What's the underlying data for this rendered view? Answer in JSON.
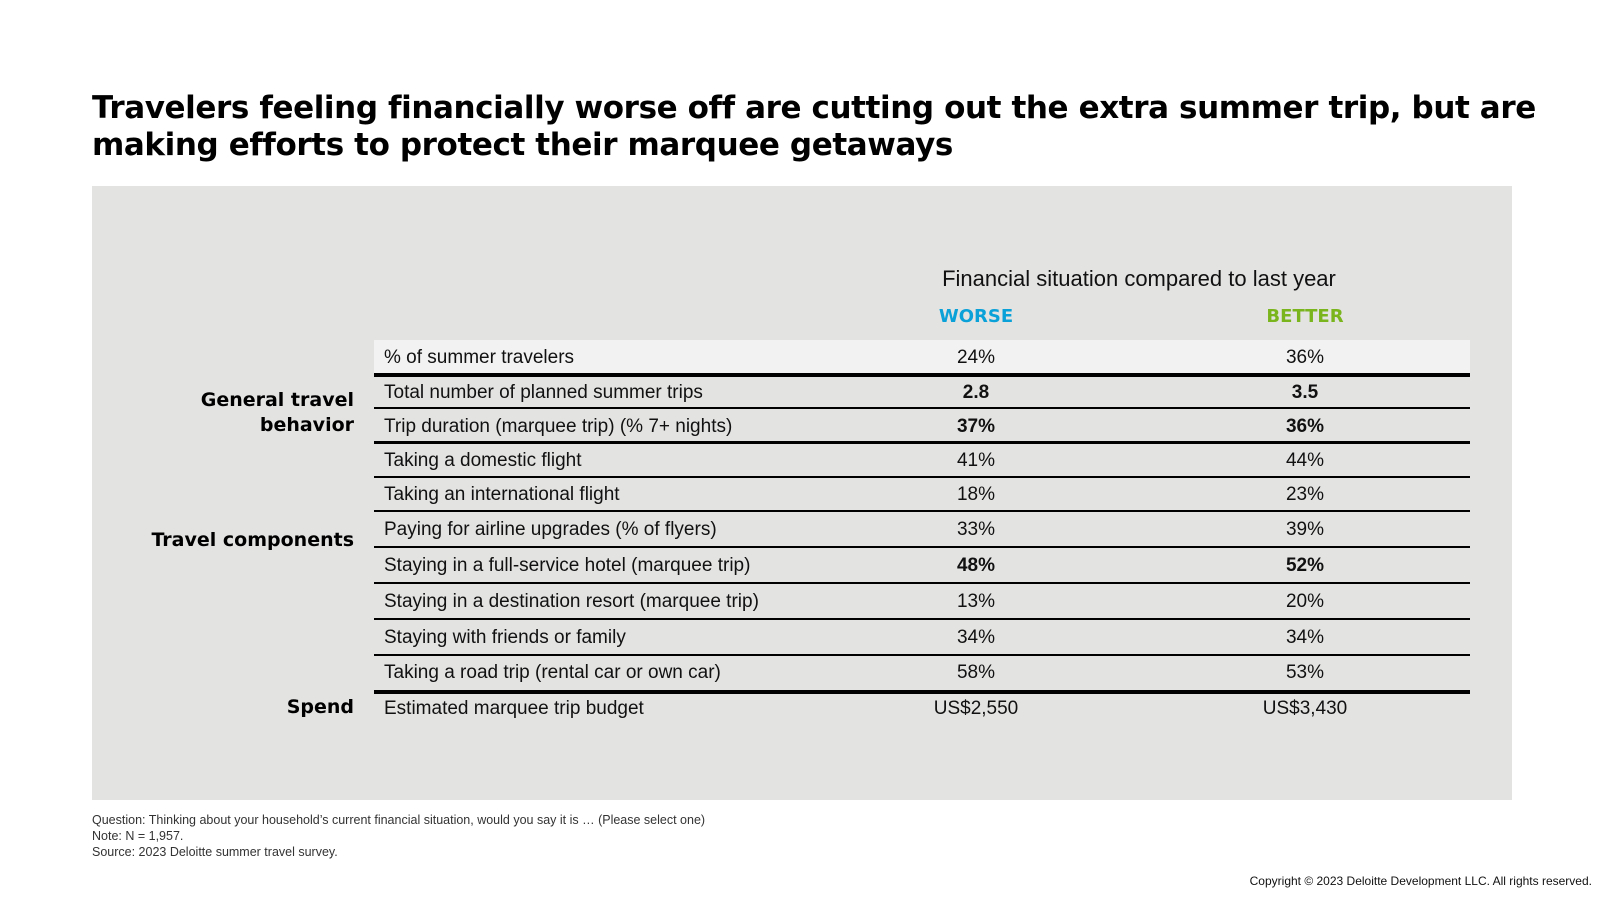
{
  "title": "Travelers feeling financially worse off are cutting out the extra summer trip, but are making efforts to protect their marquee getaways",
  "colors": {
    "worse": "#0aa1d8",
    "better": "#7ab51d"
  },
  "chart_data": {
    "type": "table",
    "subtitle": "Financial situation compared to last year",
    "columns": [
      "WORSE",
      "BETTER"
    ],
    "groups": [
      {
        "name": "General travel behavior",
        "rows": [
          "% of summer travelers",
          "Total number of planned summer trips",
          "Trip duration (marquee trip) (% 7+ nights)"
        ]
      },
      {
        "name": "Travel components",
        "rows": [
          "Taking a domestic flight",
          "Taking an international flight",
          "Paying for airline upgrades (% of flyers)",
          "Staying in a full-service hotel (marquee trip)",
          "Staying in a destination resort (marquee trip)",
          "Staying with friends or family",
          "Taking a road trip (rental car or own car)"
        ]
      },
      {
        "name": "Spend",
        "rows": [
          "Estimated marquee trip budget"
        ]
      }
    ],
    "rows": [
      {
        "label": "% of summer travelers",
        "worse": "24%",
        "better": "36%",
        "bold": false
      },
      {
        "label": "Total number of planned summer trips",
        "worse": "2.8",
        "better": "3.5",
        "bold": true
      },
      {
        "label": "Trip duration (marquee trip) (% 7+ nights)",
        "worse": "37%",
        "better": "36%",
        "bold": true
      },
      {
        "label": "Taking a domestic flight",
        "worse": "41%",
        "better": "44%",
        "bold": false
      },
      {
        "label": "Taking an international flight",
        "worse": "18%",
        "better": "23%",
        "bold": false
      },
      {
        "label": "Paying for airline upgrades (% of flyers)",
        "worse": "33%",
        "better": "39%",
        "bold": false
      },
      {
        "label": "Staying in a full-service hotel (marquee trip)",
        "worse": "48%",
        "better": "52%",
        "bold": true
      },
      {
        "label": "Staying in a destination resort (marquee trip)",
        "worse": "13%",
        "better": "20%",
        "bold": false
      },
      {
        "label": "Staying with friends or family",
        "worse": "34%",
        "better": "34%",
        "bold": false
      },
      {
        "label": "Taking a road trip (rental car or own car)",
        "worse": "58%",
        "better": "53%",
        "bold": false
      },
      {
        "label": "Estimated marquee trip budget",
        "worse": "US$2,550",
        "better": "US$3,430",
        "bold": false
      }
    ]
  },
  "footnotes": {
    "question": "Question: Thinking about your household’s current financial situation, would you say it is … (Please select one)",
    "note": "Note: N = 1,957.",
    "source": "Source: 2023 Deloitte summer travel survey."
  },
  "copyright": "Copyright © 2023 Deloitte Development LLC. All rights reserved."
}
